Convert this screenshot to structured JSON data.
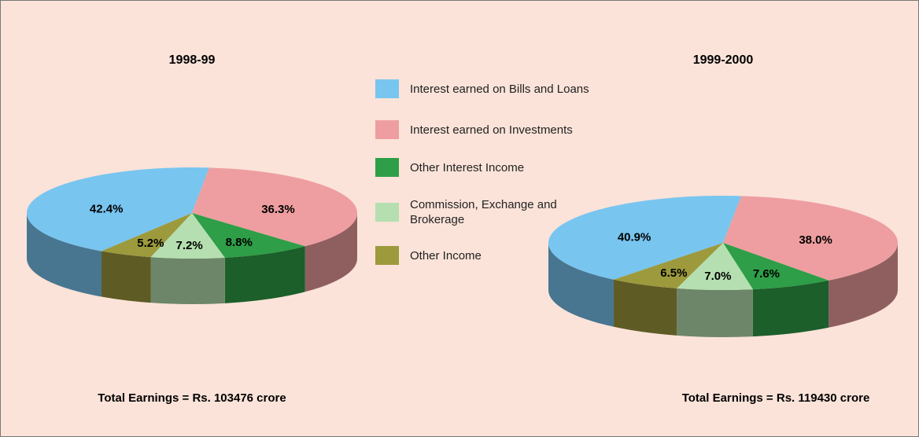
{
  "chart_data": [
    {
      "type": "pie",
      "title": "1998-99",
      "categories": [
        "Interest earned on Bills and Loans",
        "Interest earned on Investments",
        "Other Interest Income",
        "Commission, Exchange and Brokerage",
        "Other Income"
      ],
      "values": [
        42.4,
        36.3,
        8.8,
        7.2,
        5.2
      ],
      "value_labels": [
        "42.4%",
        "36.3%",
        "8.8%",
        "7.2%",
        "5.2%"
      ],
      "colors": [
        "#78c5f0",
        "#ee9ea0",
        "#2e9e48",
        "#b5dfb0",
        "#9c9a3c"
      ],
      "footnote": "Total Earnings = Rs. 103476 crore"
    },
    {
      "type": "pie",
      "title": "1999-2000",
      "categories": [
        "Interest earned on Bills and Loans",
        "Interest earned on Investments",
        "Other Interest Income",
        "Commission, Exchange and Brokerage",
        "Other Income"
      ],
      "values": [
        40.9,
        38.0,
        7.6,
        7.0,
        6.5
      ],
      "value_labels": [
        "40.9%",
        "38.0%",
        "7.6%",
        "7.0%",
        "6.5%"
      ],
      "colors": [
        "#78c5f0",
        "#ee9ea0",
        "#2e9e48",
        "#b5dfb0",
        "#9c9a3c"
      ],
      "footnote": "Total Earnings = Rs. 119430 crore"
    }
  ]
}
